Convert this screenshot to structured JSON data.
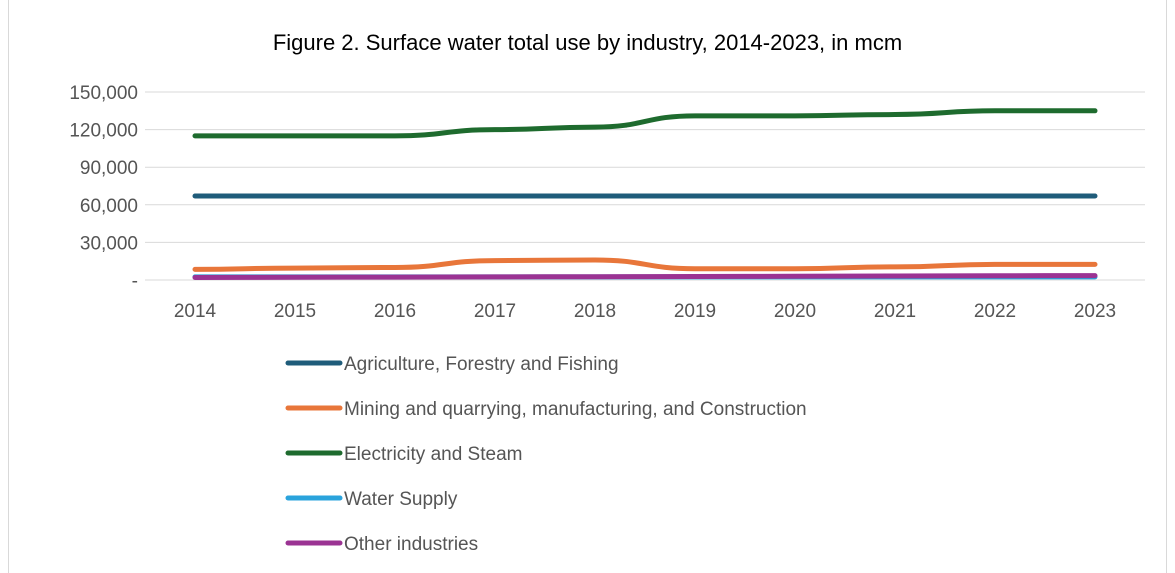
{
  "chart_data": {
    "type": "line",
    "title": "Figure 2. Surface water total use by industry, 2014-2023, in mcm",
    "xlabel": "",
    "ylabel": "",
    "categories": [
      "2014",
      "2015",
      "2016",
      "2017",
      "2018",
      "2019",
      "2020",
      "2021",
      "2022",
      "2023"
    ],
    "ylim": [
      0,
      150000
    ],
    "yticks": [
      0,
      30000,
      60000,
      90000,
      120000,
      150000
    ],
    "ytick_labels": [
      "-",
      "30,000",
      "60,000",
      "90,000",
      "120,000",
      "150,000"
    ],
    "grid": true,
    "legend_position": "bottom",
    "series": [
      {
        "name": "Agriculture, Forestry and Fishing",
        "color": "#1f5c7a",
        "values": [
          67000,
          67000,
          67000,
          67000,
          67000,
          67000,
          67000,
          67000,
          67000,
          67000
        ]
      },
      {
        "name": "Mining and quarrying, manufacturing, and Construction",
        "color": "#e8763a",
        "values": [
          8500,
          9500,
          10000,
          15500,
          16000,
          9000,
          9000,
          10500,
          12500,
          12500
        ]
      },
      {
        "name": "Electricity and Steam",
        "color": "#1e6b2e",
        "values": [
          115000,
          115000,
          115000,
          120000,
          122000,
          131000,
          131000,
          132000,
          135000,
          135000
        ]
      },
      {
        "name": "Water Supply",
        "color": "#2aa3dc",
        "values": [
          2500,
          2500,
          2500,
          2500,
          2500,
          2500,
          2500,
          2500,
          2500,
          2500
        ]
      },
      {
        "name": "Other industries",
        "color": "#9b3393",
        "values": [
          2000,
          2200,
          2300,
          2500,
          2600,
          2800,
          3000,
          3200,
          3400,
          3500
        ]
      }
    ]
  }
}
